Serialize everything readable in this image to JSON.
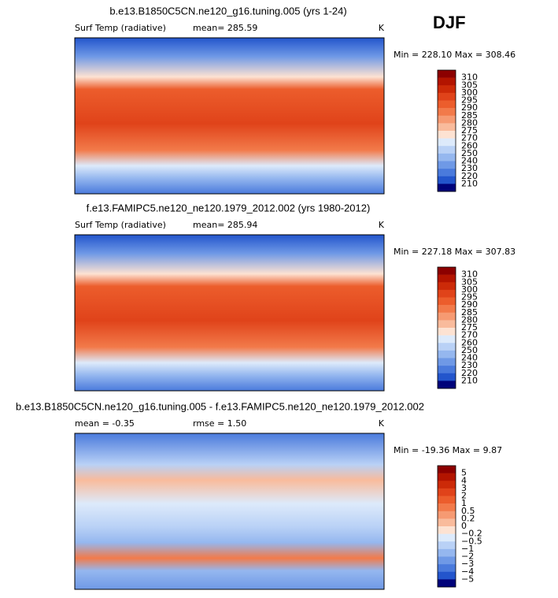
{
  "season": "DJF",
  "panels": [
    {
      "title": "b.e13.B1850C5CN.ne120_g16.tuning.005 (yrs 1-24)",
      "left_label": "Surf Temp (radiative)",
      "mean": "mean= 285.59",
      "unit": "K",
      "minmax": "Min = 228.10 Max = 308.46",
      "colorbar": {
        "labels": [
          "310",
          "305",
          "300",
          "295",
          "290",
          "285",
          "280",
          "275",
          "270",
          "260",
          "250",
          "240",
          "230",
          "220",
          "210"
        ],
        "colors": [
          "#8c0000",
          "#b31400",
          "#cc2a08",
          "#e0431a",
          "#ec5d2c",
          "#f27a4a",
          "#f69a72",
          "#f9bb9c",
          "#fde2d2",
          "#ddeafb",
          "#b9d1f6",
          "#95b7ef",
          "#6f99e6",
          "#4a7adc",
          "#2355cc",
          "#00037a"
        ]
      }
    },
    {
      "title": "f.e13.FAMIPC5.ne120_ne120.1979_2012.002 (yrs 1980-2012)",
      "left_label": "Surf Temp (radiative)",
      "mean": "mean= 285.94",
      "unit": "K",
      "minmax": "Min = 227.18 Max = 307.83",
      "colorbar": {
        "labels": [
          "310",
          "305",
          "300",
          "295",
          "290",
          "285",
          "280",
          "275",
          "270",
          "260",
          "250",
          "240",
          "230",
          "220",
          "210"
        ],
        "colors": [
          "#8c0000",
          "#b31400",
          "#cc2a08",
          "#e0431a",
          "#ec5d2c",
          "#f27a4a",
          "#f69a72",
          "#f9bb9c",
          "#fde2d2",
          "#ddeafb",
          "#b9d1f6",
          "#95b7ef",
          "#6f99e6",
          "#4a7adc",
          "#2355cc",
          "#00037a"
        ]
      }
    },
    {
      "title": "b.e13.B1850C5CN.ne120_g16.tuning.005 - f.e13.FAMIPC5.ne120_ne120.1979_2012.002",
      "left_label": "mean =   -0.35",
      "mean": "rmse =    1.50",
      "unit": "K",
      "minmax": "Min = -19.36 Max =    9.87",
      "colorbar": {
        "labels": [
          "5",
          "4",
          "3",
          "2",
          "1",
          "0.5",
          "0.2",
          "0",
          "−0.2",
          "−0.5",
          "−1",
          "−2",
          "−3",
          "−4",
          "−5"
        ],
        "colors": [
          "#8c0000",
          "#b31400",
          "#cc2a08",
          "#e0431a",
          "#ec5d2c",
          "#f27a4a",
          "#f69a72",
          "#f9bb9c",
          "#fde2d2",
          "#ddeafb",
          "#b9d1f6",
          "#95b7ef",
          "#6f99e6",
          "#4a7adc",
          "#2355cc",
          "#00037a"
        ]
      }
    }
  ]
}
